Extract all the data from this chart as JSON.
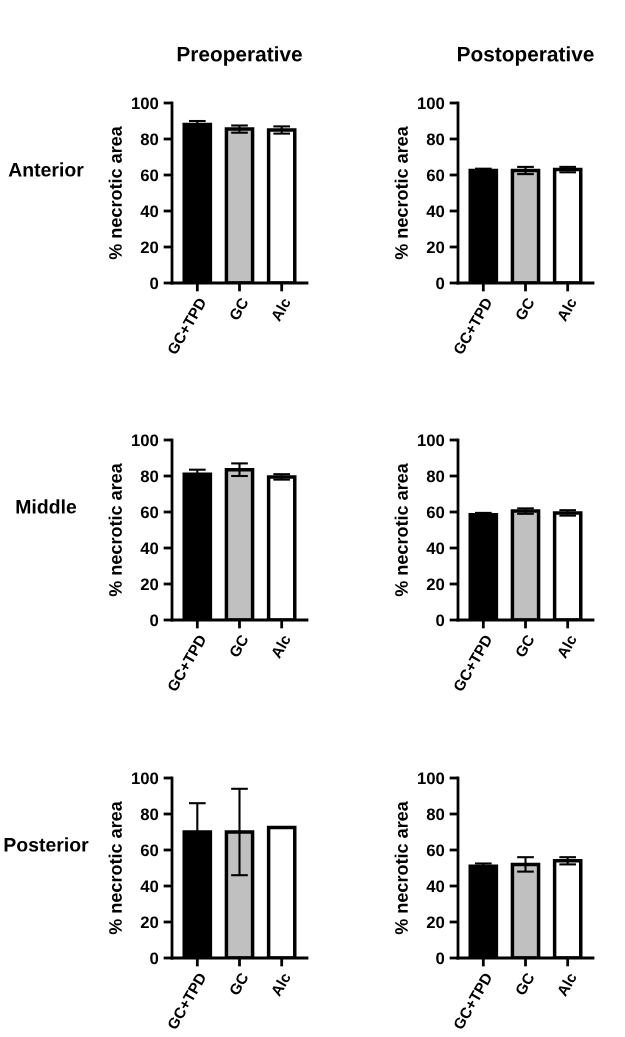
{
  "chart_data": [
    {
      "type": "bar",
      "title": "Preoperative",
      "annotations": [
        "Anterior"
      ],
      "ylabel": "% necrotic area",
      "categories": [
        "GC+TPD",
        "GC",
        "Alc"
      ],
      "values": [
        88,
        85.5,
        85
      ],
      "errors": [
        2,
        2,
        2
      ],
      "colors": [
        "#000000",
        "#c0c0c0",
        "#ffffff"
      ],
      "ylim": [
        0,
        100
      ],
      "yticks": [
        0,
        20,
        40,
        60,
        80,
        100
      ],
      "grid": false,
      "legend": false
    },
    {
      "type": "bar",
      "title": "Postoperative",
      "ylabel": "% necrotic area",
      "categories": [
        "GC+TPD",
        "GC",
        "Alc"
      ],
      "values": [
        62.5,
        62.5,
        63
      ],
      "errors": [
        1,
        2,
        1.5
      ],
      "colors": [
        "#000000",
        "#c0c0c0",
        "#ffffff"
      ],
      "ylim": [
        0,
        100
      ],
      "yticks": [
        0,
        20,
        40,
        60,
        80,
        100
      ],
      "grid": false,
      "legend": false
    },
    {
      "type": "bar",
      "annotations": [
        "Middle"
      ],
      "ylabel": "% necrotic area",
      "categories": [
        "GC+TPD",
        "GC",
        "Alc"
      ],
      "values": [
        81,
        83.5,
        79.5
      ],
      "errors": [
        2.5,
        3.5,
        1.5
      ],
      "colors": [
        "#000000",
        "#c0c0c0",
        "#ffffff"
      ],
      "ylim": [
        0,
        100
      ],
      "yticks": [
        0,
        20,
        40,
        60,
        80,
        100
      ],
      "grid": false,
      "legend": false
    },
    {
      "type": "bar",
      "ylabel": "% necrotic area",
      "categories": [
        "GC+TPD",
        "GC",
        "Alc"
      ],
      "values": [
        58.5,
        60.5,
        59.5
      ],
      "errors": [
        1,
        1.5,
        1.5
      ],
      "colors": [
        "#000000",
        "#c0c0c0",
        "#ffffff"
      ],
      "ylim": [
        0,
        100
      ],
      "yticks": [
        0,
        20,
        40,
        60,
        80,
        100
      ],
      "grid": false,
      "legend": false
    },
    {
      "type": "bar",
      "annotations": [
        "Posterior"
      ],
      "ylabel": "% necrotic area",
      "categories": [
        "GC+TPD",
        "GC",
        "Alc"
      ],
      "values": [
        70,
        70,
        72.5
      ],
      "errors": [
        16,
        24,
        null
      ],
      "colors": [
        "#000000",
        "#c0c0c0",
        "#ffffff"
      ],
      "ylim": [
        0,
        100
      ],
      "yticks": [
        0,
        20,
        40,
        60,
        80,
        100
      ],
      "grid": false,
      "legend": false
    },
    {
      "type": "bar",
      "ylabel": "% necrotic area",
      "categories": [
        "GC+TPD",
        "GC",
        "Alc"
      ],
      "values": [
        51,
        52,
        54
      ],
      "errors": [
        1.5,
        4,
        2
      ],
      "colors": [
        "#000000",
        "#c0c0c0",
        "#ffffff"
      ],
      "ylim": [
        0,
        100
      ],
      "yticks": [
        0,
        20,
        40,
        60,
        80,
        100
      ],
      "grid": false,
      "legend": false
    }
  ]
}
